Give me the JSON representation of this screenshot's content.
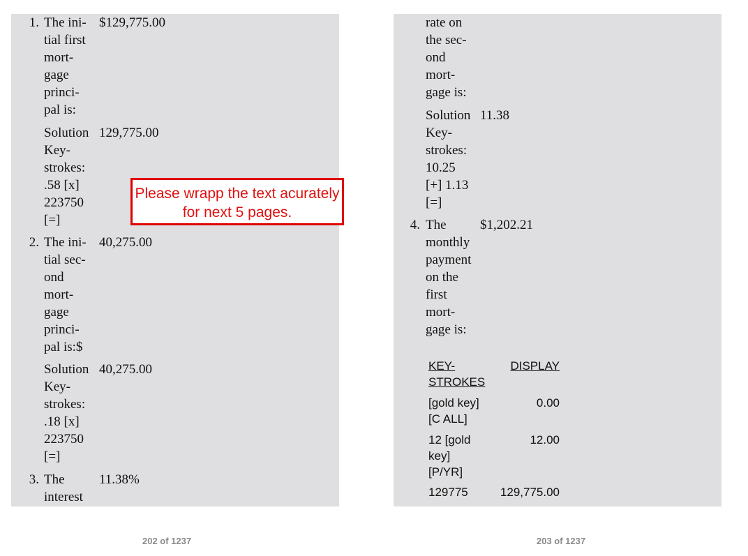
{
  "left_page": {
    "items": [
      {
        "number": "1.",
        "text": "The ini-\ntial first\nmort-\ngage\nprinci-\npal is:",
        "value": "$129,775.00"
      },
      {
        "number": "",
        "text": "Solution\nKey-\nstrokes:\n.58 [x]\n223750\n[=]",
        "value": "129,775.00"
      },
      {
        "number": "2.",
        "text": "The ini-\ntial sec-\nond\nmort-\ngage\nprinci-\npal is:$",
        "value": "40,275.00"
      },
      {
        "number": "",
        "text": "Solution\nKey-\nstrokes:\n.18 [x]\n223750\n[=]",
        "value": "40,275.00"
      },
      {
        "number": "3.",
        "text": "The\ninterest",
        "value": "11.38%"
      }
    ],
    "page_number": "202 of 1237"
  },
  "right_page": {
    "items": [
      {
        "number": "",
        "text": "rate on\nthe sec-\nond\nmort-\ngage is:",
        "value": ""
      },
      {
        "number": "",
        "text": "Solution\nKey-\nstrokes:\n10.25\n[+] 1.13\n[=]",
        "value": "11.38"
      },
      {
        "number": "4.",
        "text": "The\nmonthly\npayment\non the\nfirst\nmort-\ngage is:",
        "value": "$1,202.21"
      }
    ],
    "table": {
      "headers": [
        "KEY-\nSTROKES",
        "DISPLAY"
      ],
      "rows": [
        {
          "keys": "[gold key]\n[C ALL]",
          "display": "0.00"
        },
        {
          "keys": "12 [gold\nkey]\n[P/YR]",
          "display": "12.00"
        },
        {
          "keys": "129775",
          "display": "129,775.00"
        }
      ]
    },
    "page_number": "203 of 1237"
  },
  "annotation": {
    "text": "Please wrapp the text acurately for next 5 pages."
  }
}
